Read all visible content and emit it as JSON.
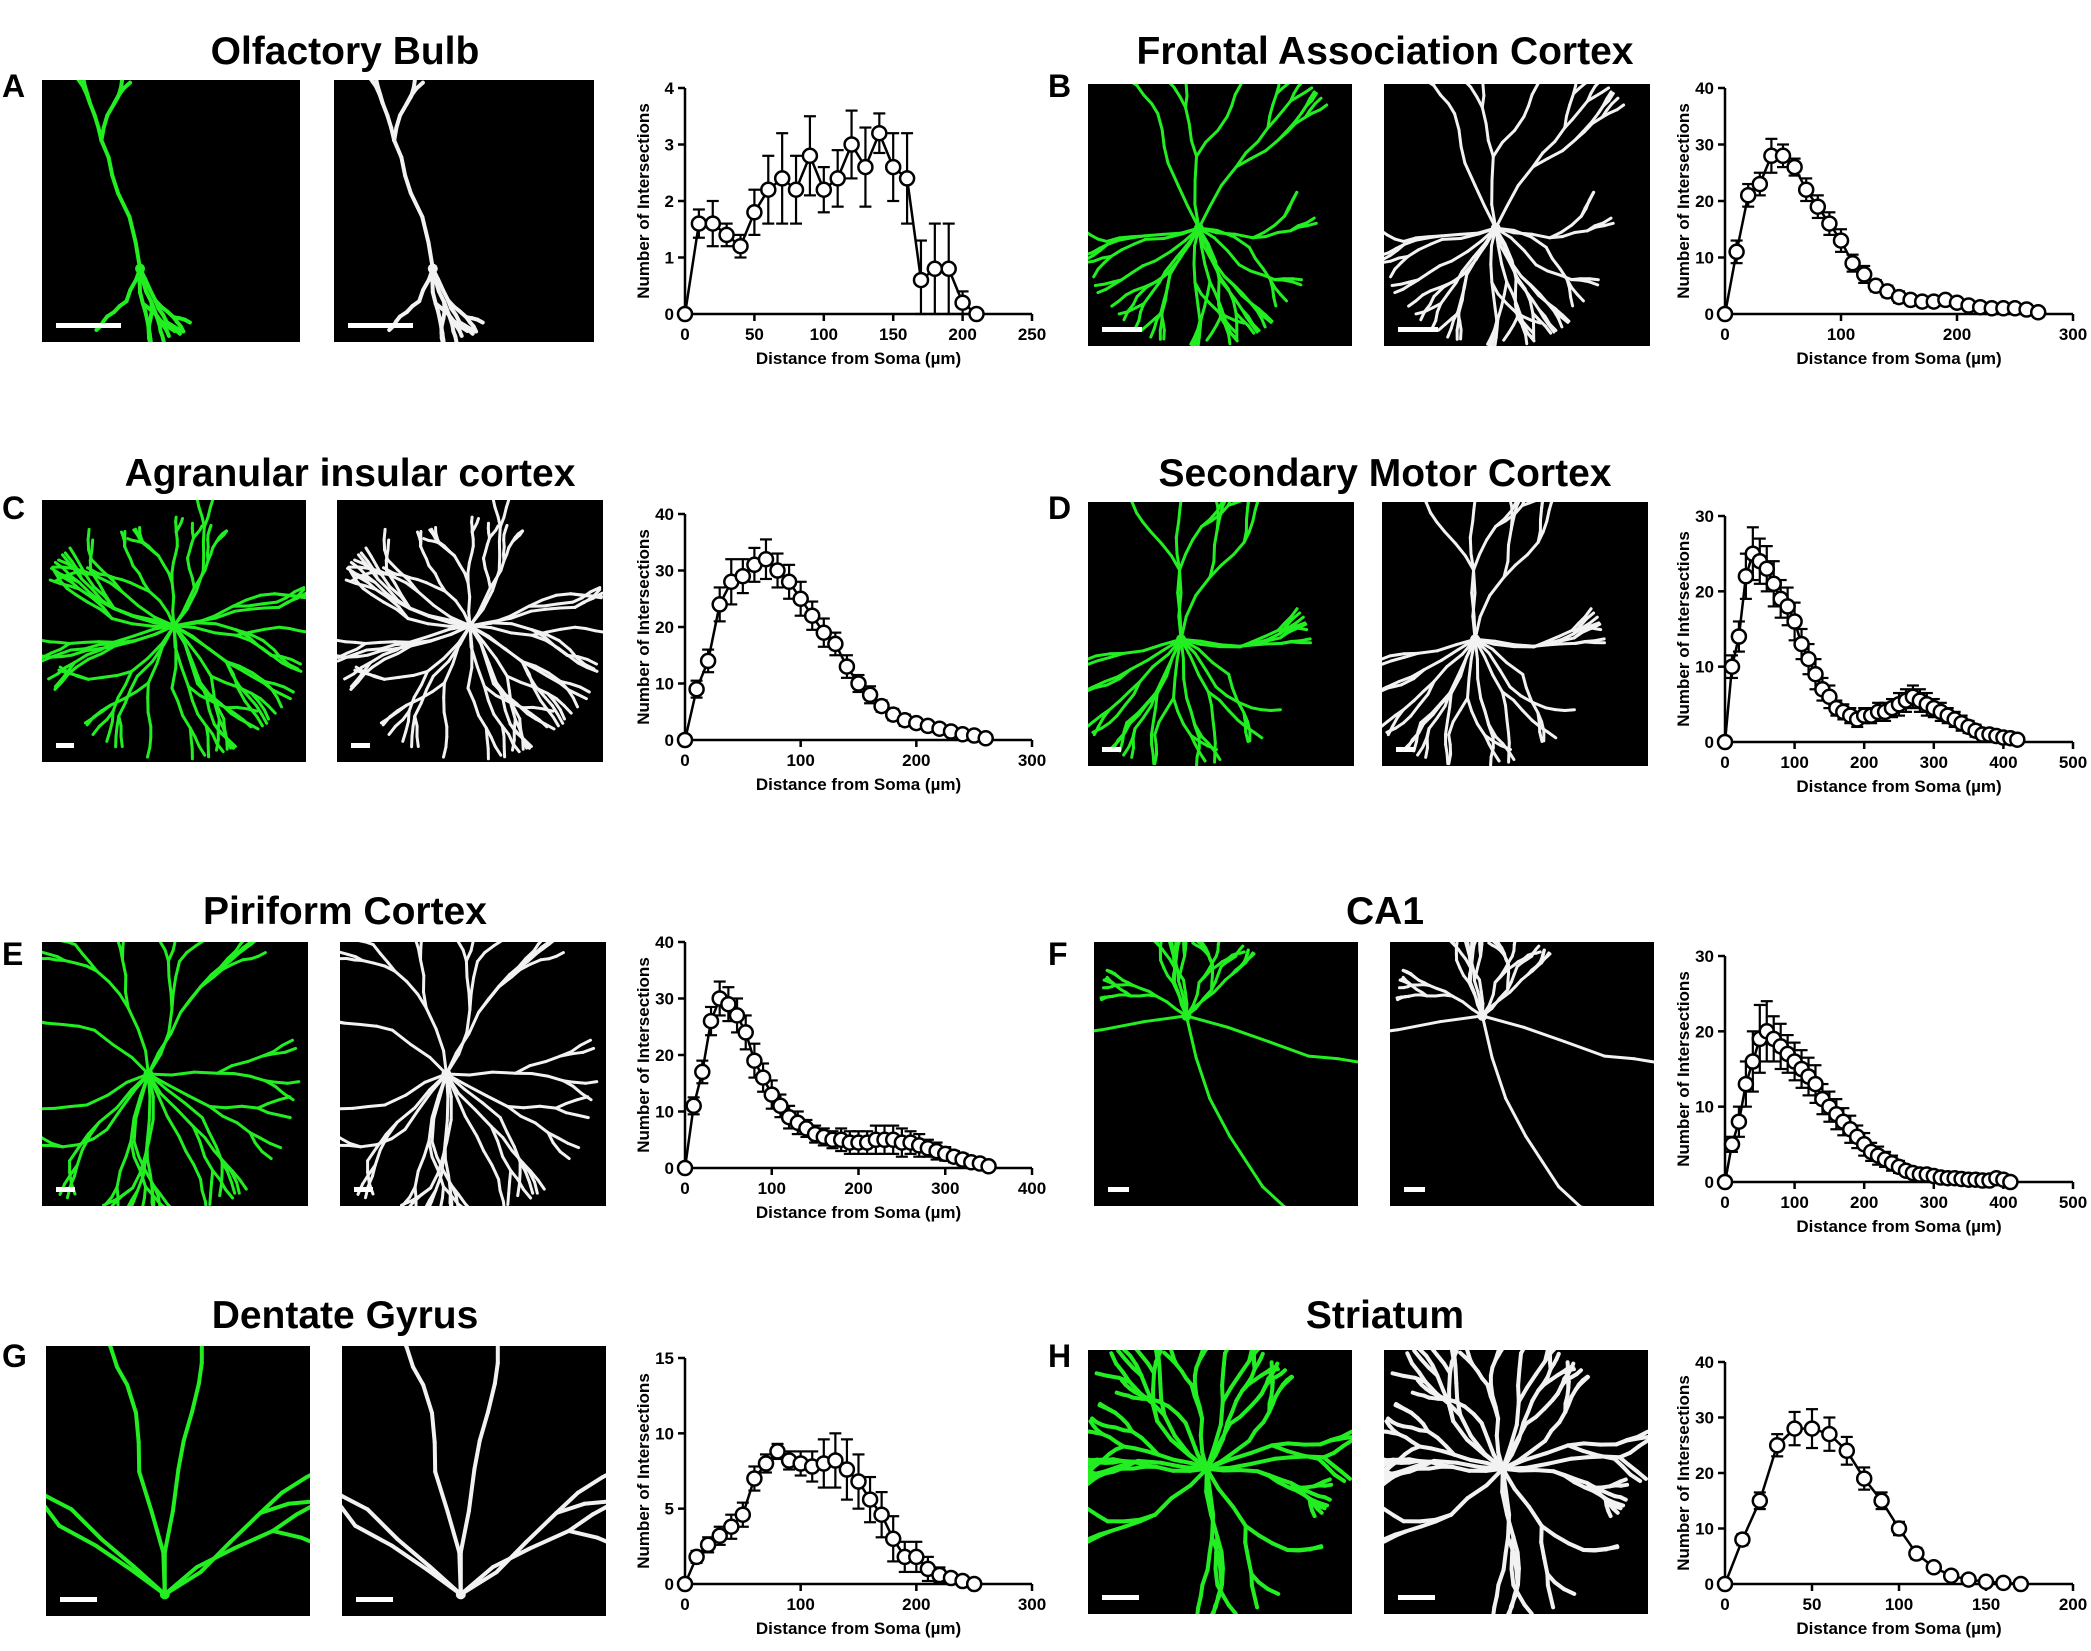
{
  "colors": {
    "neuron_green": "#22ee22",
    "neuron_white": "#f2f2f2",
    "image_bg": "#000000"
  },
  "panels": [
    {
      "letter": "A",
      "title": "Olfactory Bulb"
    },
    {
      "letter": "B",
      "title": "Frontal Association Cortex"
    },
    {
      "letter": "C",
      "title": "Agranular insular cortex"
    },
    {
      "letter": "D",
      "title": "Secondary Motor Cortex"
    },
    {
      "letter": "E",
      "title": "Piriform Cortex"
    },
    {
      "letter": "F",
      "title": "CA1"
    },
    {
      "letter": "G",
      "title": "Dentate Gyrus"
    },
    {
      "letter": "H",
      "title": "Striatum"
    }
  ],
  "chart_data": [
    {
      "type": "line",
      "panel": "A",
      "xlabel": "Distance from Soma (µm)",
      "ylabel": "Number of Intersections",
      "xlim": [
        0,
        250
      ],
      "ylim": [
        0,
        4
      ],
      "xticks": [
        0,
        50,
        100,
        150,
        200,
        250
      ],
      "yticks": [
        0,
        1,
        2,
        3,
        4
      ],
      "x": [
        0,
        10,
        20,
        30,
        40,
        50,
        60,
        70,
        80,
        90,
        100,
        110,
        120,
        130,
        140,
        150,
        160,
        170,
        180,
        190,
        200,
        210
      ],
      "y": [
        0,
        1.6,
        1.6,
        1.4,
        1.2,
        1.8,
        2.2,
        2.4,
        2.2,
        2.8,
        2.2,
        2.4,
        3.0,
        2.6,
        3.2,
        2.6,
        2.4,
        0.6,
        0.8,
        0.8,
        0.2,
        0
      ],
      "error": [
        0,
        0.25,
        0.4,
        0.2,
        0.2,
        0.4,
        0.6,
        0.8,
        0.6,
        0.7,
        0.4,
        0.5,
        0.6,
        0.7,
        0.35,
        0.6,
        0.8,
        0.7,
        0.8,
        0.8,
        0.2,
        0
      ]
    },
    {
      "type": "line",
      "panel": "B",
      "xlabel": "Distance from Soma (µm)",
      "ylabel": "Number of Intersections",
      "xlim": [
        0,
        300
      ],
      "ylim": [
        0,
        40
      ],
      "xticks": [
        0,
        100,
        200,
        300
      ],
      "yticks": [
        0,
        10,
        20,
        30,
        40
      ],
      "x": [
        0,
        10,
        20,
        30,
        40,
        50,
        60,
        70,
        80,
        90,
        100,
        110,
        120,
        130,
        140,
        150,
        160,
        170,
        180,
        190,
        200,
        210,
        220,
        230,
        240,
        250,
        260,
        270
      ],
      "y": [
        0,
        11,
        21,
        23,
        28,
        28,
        26,
        22,
        19,
        16,
        13,
        9,
        7,
        5,
        4,
        3,
        2.5,
        2.2,
        2.2,
        2.5,
        2,
        1.5,
        1.2,
        1,
        1,
        1,
        0.8,
        0.3
      ],
      "error": [
        0,
        2,
        2,
        2,
        3,
        2,
        1.5,
        2,
        2,
        2,
        2,
        1.5,
        1.5,
        1,
        1,
        1,
        0.8,
        0.5,
        0.5,
        0.5,
        0.5,
        0.5,
        0.5,
        0.5,
        0.5,
        0.5,
        0.5,
        0.3
      ]
    },
    {
      "type": "line",
      "panel": "C",
      "xlabel": "Distance from Soma (µm)",
      "ylabel": "Number of Intersections",
      "xlim": [
        0,
        300
      ],
      "ylim": [
        0,
        40
      ],
      "xticks": [
        0,
        100,
        200,
        300
      ],
      "yticks": [
        0,
        10,
        20,
        30,
        40
      ],
      "x": [
        0,
        10,
        20,
        30,
        40,
        50,
        60,
        70,
        80,
        90,
        100,
        110,
        120,
        130,
        140,
        150,
        160,
        170,
        180,
        190,
        200,
        210,
        220,
        230,
        240,
        250,
        260
      ],
      "y": [
        0,
        9,
        14,
        24,
        28,
        29,
        31,
        32,
        30,
        28,
        25,
        22,
        19,
        17,
        13,
        10,
        8,
        6,
        4.5,
        3.5,
        3,
        2.5,
        2,
        1.5,
        1,
        0.8,
        0.3
      ],
      "error": [
        0,
        1.5,
        2,
        3,
        4,
        3,
        3,
        3.5,
        3,
        3,
        3,
        2.5,
        2.5,
        2,
        2,
        1.5,
        1.5,
        1,
        1,
        1,
        0.8,
        0.6,
        0.5,
        0.4,
        0.3,
        0.3,
        0.2
      ]
    },
    {
      "type": "line",
      "panel": "D",
      "xlabel": "Distance from Soma (µm)",
      "ylabel": "Number of Intersections",
      "xlim": [
        0,
        500
      ],
      "ylim": [
        0,
        30
      ],
      "xticks": [
        0,
        100,
        200,
        300,
        400,
        500
      ],
      "yticks": [
        0,
        10,
        20,
        30
      ],
      "x": [
        0,
        10,
        20,
        30,
        40,
        50,
        60,
        70,
        80,
        90,
        100,
        110,
        120,
        130,
        140,
        150,
        160,
        170,
        180,
        190,
        200,
        210,
        220,
        230,
        240,
        250,
        260,
        270,
        280,
        290,
        300,
        310,
        320,
        330,
        340,
        350,
        360,
        370,
        380,
        390,
        400,
        410,
        420
      ],
      "y": [
        0,
        10,
        14,
        22,
        25,
        24,
        23,
        21,
        19,
        18,
        16,
        13,
        11,
        9,
        7,
        6,
        4.5,
        4,
        3.5,
        3,
        3.5,
        3.5,
        4,
        4,
        4.5,
        5,
        5.5,
        6,
        5.5,
        5,
        4.5,
        4,
        3.5,
        3,
        2.5,
        2,
        1.5,
        1,
        1,
        0.8,
        0.6,
        0.5,
        0.3
      ],
      "error": [
        0,
        1.5,
        2,
        3,
        3.5,
        3,
        3,
        3,
        2.5,
        2.5,
        2.5,
        2,
        2,
        2,
        1.5,
        1.5,
        1,
        1,
        1,
        1,
        1,
        1,
        1.2,
        1.2,
        1.2,
        1.5,
        1.5,
        1.5,
        1.5,
        1.5,
        1.2,
        1.2,
        1,
        1,
        1,
        0.8,
        0.8,
        0.6,
        0.5,
        0.5,
        0.4,
        0.3,
        0.2
      ]
    },
    {
      "type": "line",
      "panel": "E",
      "xlabel": "Distance from Soma (µm)",
      "ylabel": "Number of Intersections",
      "xlim": [
        0,
        400
      ],
      "ylim": [
        0,
        40
      ],
      "xticks": [
        0,
        100,
        200,
        300,
        400
      ],
      "yticks": [
        0,
        10,
        20,
        30,
        40
      ],
      "x": [
        0,
        10,
        20,
        30,
        40,
        50,
        60,
        70,
        80,
        90,
        100,
        110,
        120,
        130,
        140,
        150,
        160,
        170,
        180,
        190,
        200,
        210,
        220,
        230,
        240,
        250,
        260,
        270,
        280,
        290,
        300,
        310,
        320,
        330,
        340,
        350
      ],
      "y": [
        0,
        11,
        17,
        26,
        30,
        29,
        27,
        24,
        19,
        16,
        13,
        11,
        9,
        8,
        7,
        6,
        5.5,
        5,
        5,
        4.5,
        4.5,
        4.5,
        5,
        5,
        5,
        4.5,
        4.5,
        4,
        3.5,
        3,
        2.5,
        2,
        1.5,
        1,
        0.8,
        0.3
      ],
      "error": [
        0,
        1.5,
        2,
        2.5,
        3,
        3,
        3,
        3,
        3,
        2.5,
        2.5,
        2,
        2,
        2,
        1.5,
        1.5,
        1.5,
        1.5,
        2,
        2,
        2,
        2,
        2.5,
        2.5,
        2.5,
        2.5,
        2,
        2,
        1.5,
        1.5,
        1.2,
        1,
        1,
        0.8,
        0.6,
        0.3
      ]
    },
    {
      "type": "line",
      "panel": "F",
      "xlabel": "Distance from Soma (µm)",
      "ylabel": "Number of Intersections",
      "xlim": [
        0,
        500
      ],
      "ylim": [
        0,
        30
      ],
      "xticks": [
        0,
        100,
        200,
        300,
        400,
        500
      ],
      "yticks": [
        0,
        10,
        20,
        30
      ],
      "x": [
        0,
        10,
        20,
        30,
        40,
        50,
        60,
        70,
        80,
        90,
        100,
        110,
        120,
        130,
        140,
        150,
        160,
        170,
        180,
        190,
        200,
        210,
        220,
        230,
        240,
        250,
        260,
        270,
        280,
        290,
        300,
        310,
        320,
        330,
        340,
        350,
        360,
        370,
        380,
        390,
        400,
        410
      ],
      "y": [
        0,
        5,
        8,
        13,
        16,
        19,
        20,
        19,
        18,
        17,
        16,
        15,
        14,
        13,
        11,
        10,
        9,
        8,
        7,
        6,
        5,
        4,
        3.5,
        3,
        2.5,
        2,
        1.5,
        1.2,
        1,
        1,
        0.8,
        0.6,
        0.5,
        0.5,
        0.4,
        0.3,
        0.3,
        0.2,
        0.2,
        0.5,
        0.3,
        0
      ],
      "error": [
        0,
        1,
        2,
        3,
        4,
        4.5,
        4,
        3,
        3,
        2.5,
        2.5,
        2.5,
        2.5,
        2.5,
        2,
        2,
        2,
        1.8,
        1.8,
        1.5,
        1.5,
        1.2,
        1.2,
        1,
        1,
        0.8,
        0.6,
        0.5,
        0.4,
        0.3,
        0.3,
        0.3,
        0.3,
        0.2,
        0.2,
        0.2,
        0.2,
        0.2,
        0.2,
        0.4,
        0.3,
        0
      ]
    },
    {
      "type": "line",
      "panel": "G",
      "xlabel": "Distance from Soma (µm)",
      "ylabel": "Number of Intersections",
      "xlim": [
        0,
        300
      ],
      "ylim": [
        0,
        15
      ],
      "xticks": [
        0,
        100,
        200,
        300
      ],
      "yticks": [
        0,
        5,
        10,
        15
      ],
      "x": [
        0,
        10,
        20,
        30,
        40,
        50,
        60,
        70,
        80,
        90,
        100,
        110,
        120,
        130,
        140,
        150,
        160,
        170,
        180,
        190,
        200,
        210,
        220,
        230,
        240,
        250
      ],
      "y": [
        0,
        1.8,
        2.6,
        3.2,
        3.8,
        4.6,
        7,
        8,
        8.8,
        8.2,
        8,
        7.8,
        8,
        8.2,
        7.6,
        6.8,
        5.6,
        4.6,
        3,
        1.8,
        1.8,
        1,
        0.6,
        0.4,
        0.2,
        0
      ],
      "error": [
        0,
        0.4,
        0.5,
        0.6,
        0.8,
        0.8,
        0.8,
        0.6,
        0.5,
        0.6,
        0.8,
        1,
        1.6,
        1.8,
        2,
        1.8,
        1.5,
        1.5,
        1.5,
        1,
        1,
        0.8,
        0.5,
        0.3,
        0.2,
        0
      ]
    },
    {
      "type": "line",
      "panel": "H",
      "xlabel": "Distance from Soma (µm)",
      "ylabel": "Number of Intersections",
      "xlim": [
        0,
        200
      ],
      "ylim": [
        0,
        40
      ],
      "xticks": [
        0,
        50,
        100,
        150,
        200
      ],
      "yticks": [
        0,
        10,
        20,
        30,
        40
      ],
      "x": [
        0,
        10,
        20,
        30,
        40,
        50,
        60,
        70,
        80,
        90,
        100,
        110,
        120,
        130,
        140,
        150,
        160,
        170
      ],
      "y": [
        0,
        8,
        15,
        25,
        28,
        28,
        27,
        24,
        19,
        15,
        10,
        5.5,
        3,
        1.5,
        0.8,
        0.4,
        0.2,
        0
      ],
      "error": [
        0,
        1,
        1.5,
        2,
        3,
        3.5,
        3,
        2.5,
        2,
        1.5,
        1.2,
        1,
        0.6,
        0.5,
        0.4,
        0.3,
        0.2,
        0
      ]
    }
  ]
}
